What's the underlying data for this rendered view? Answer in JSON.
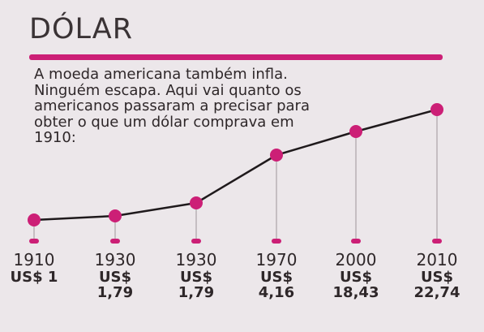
{
  "header": {
    "title": "DÓLAR",
    "intro": "A moeda americana também infla. Ninguém escapa. Aqui vai quanto os americanos passaram a precisar para obter o que um dólar comprava em 1910:"
  },
  "colors": {
    "accent": "#cc1f76",
    "line": "#1f1a1c",
    "stem": "#b8b0b4"
  },
  "chart_data": {
    "type": "line",
    "categories": [
      "1910",
      "1930",
      "1930",
      "1970",
      "2000",
      "2010"
    ],
    "currency": "US$",
    "value_labels": [
      "1",
      "1,79",
      "1,79",
      "4,16",
      "18,43",
      "22,74"
    ],
    "values": [
      1,
      1.79,
      1.79,
      4.16,
      18.43,
      22.74
    ],
    "grid": false,
    "legend": "none"
  }
}
